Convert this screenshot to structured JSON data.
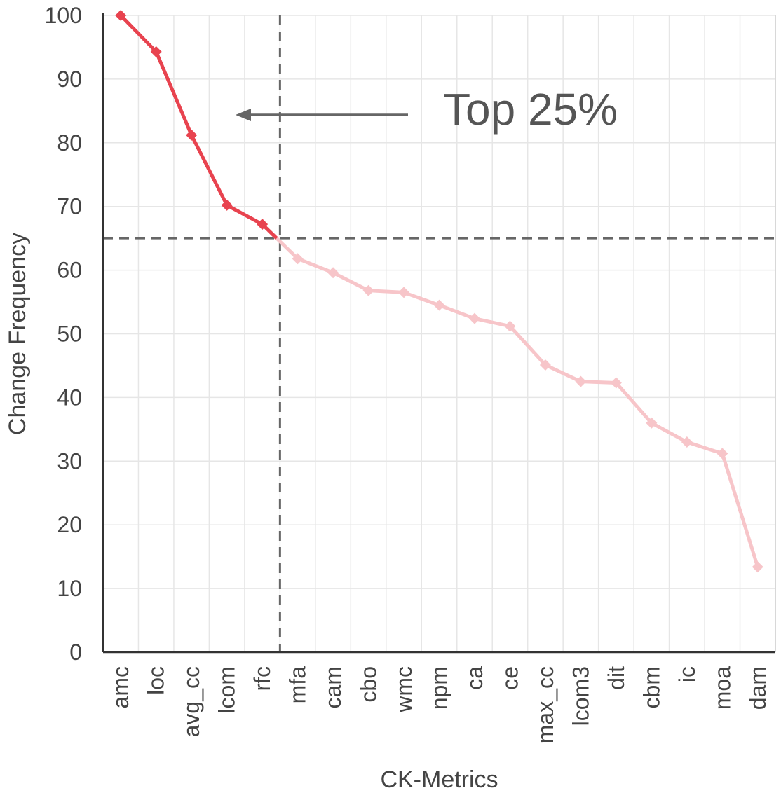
{
  "chart_data": {
    "type": "line",
    "title": "",
    "xlabel": "CK-Metrics",
    "ylabel": "Change Frequency",
    "ylim": [
      0,
      100
    ],
    "yticks": [
      0,
      10,
      20,
      30,
      40,
      50,
      60,
      70,
      80,
      90,
      100
    ],
    "grid": true,
    "categories": [
      "amc",
      "loc",
      "avg_cc",
      "lcom",
      "rfc",
      "mfa",
      "cam",
      "cbo",
      "wmc",
      "npm",
      "ca",
      "ce",
      "max_cc",
      "lcom3",
      "dit",
      "cbm",
      "ic",
      "moa",
      "dam"
    ],
    "values": [
      100,
      94.3,
      81.2,
      70.2,
      67.2,
      61.8,
      59.6,
      56.8,
      56.5,
      54.5,
      52.4,
      51.2,
      45.1,
      42.5,
      42.3,
      36.0,
      33.0,
      31.2,
      13.4
    ],
    "highlight_count": 5,
    "threshold_y": 65,
    "threshold_after_category": "rfc",
    "annotation": "Top 25%",
    "colors": {
      "highlight": "#e8434f",
      "rest": "#f7c5c9",
      "reference_line": "#666666",
      "arrow": "#666666",
      "grid": "#e6e6e6",
      "axis": "#333333"
    }
  }
}
